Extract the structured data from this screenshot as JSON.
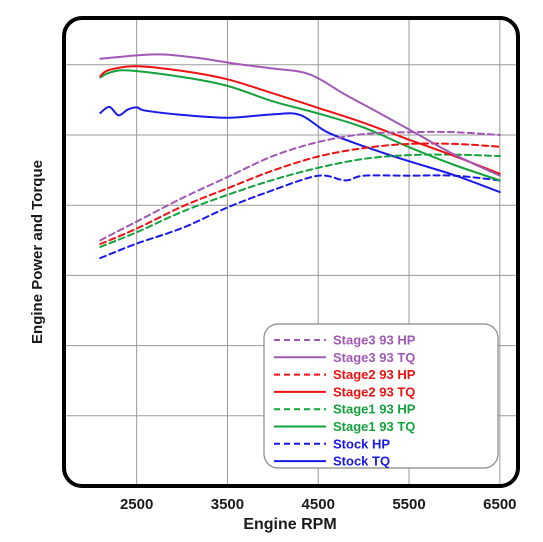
{
  "chart_data": {
    "type": "line",
    "title": "",
    "xlabel": "Engine RPM",
    "ylabel": "Engine Power and Torque",
    "xlim": [
      1700,
      6700
    ],
    "x_ticks": [
      2500,
      3500,
      4500,
      5500,
      6500
    ],
    "ylim": [
      0,
      100
    ],
    "y_grid": [
      15,
      30,
      45,
      60,
      75,
      90
    ],
    "y_tick_labels_shown": false,
    "grid": true,
    "legend_position": "bottom-right",
    "series": [
      {
        "name": "Stage3 93 HP",
        "color": "#a259b5",
        "dash": true,
        "x": [
          2100,
          2500,
          3000,
          3500,
          4000,
          4500,
          5000,
          5500,
          6000,
          6500
        ],
        "y": [
          52.5,
          56.5,
          61.5,
          66,
          70.5,
          73.5,
          75.2,
          75.6,
          75.6,
          75
        ]
      },
      {
        "name": "Stage3 93 TQ",
        "color": "#a259b5",
        "dash": false,
        "x": [
          2100,
          2500,
          2800,
          3200,
          3600,
          4000,
          4400,
          4800,
          5200,
          5600,
          6000,
          6500
        ],
        "y": [
          91.3,
          92,
          92.2,
          91.4,
          90.2,
          89.2,
          88,
          83.6,
          79.4,
          75.1,
          70.8,
          66.3
        ]
      },
      {
        "name": "Stage2 93 HP",
        "color": "#ee1111",
        "dash": true,
        "x": [
          2100,
          2500,
          3000,
          3500,
          4000,
          4500,
          5000,
          5500,
          6000,
          6500
        ],
        "y": [
          51.7,
          55,
          59.7,
          63.6,
          67.4,
          70.4,
          72.2,
          73.1,
          73.1,
          72.5
        ]
      },
      {
        "name": "Stage2 93 TQ",
        "color": "#ee1111",
        "dash": false,
        "x": [
          2100,
          2200,
          2500,
          3000,
          3500,
          4000,
          4500,
          5000,
          5500,
          6000,
          6500
        ],
        "y": [
          87.6,
          88.9,
          89.7,
          88.7,
          86.9,
          83.9,
          80.8,
          77.6,
          74,
          70.5,
          66.7
        ]
      },
      {
        "name": "Stage1 93 HP",
        "color": "#14a23c",
        "dash": true,
        "x": [
          2100,
          2500,
          3000,
          3500,
          4000,
          4500,
          5000,
          5500,
          6000,
          6500
        ],
        "y": [
          51.1,
          54.2,
          58.6,
          62.2,
          65.4,
          68,
          69.9,
          70.7,
          70.8,
          70.5
        ]
      },
      {
        "name": "Stage1 93 TQ",
        "color": "#14a23c",
        "dash": false,
        "x": [
          2100,
          2200,
          2400,
          3000,
          3500,
          4000,
          4500,
          5000,
          5500,
          6000,
          6500
        ],
        "y": [
          87.3,
          88.3,
          88.8,
          87.4,
          85.5,
          82.2,
          79.6,
          76.6,
          72.4,
          68.6,
          65.3
        ]
      },
      {
        "name": "Stock HP",
        "color": "#1a1ae6",
        "dash": true,
        "x": [
          2100,
          2500,
          3000,
          3500,
          4000,
          4500,
          4800,
          5000,
          5500,
          6000,
          6500
        ],
        "y": [
          48.7,
          51.8,
          55.1,
          59.5,
          63.2,
          66.3,
          65.3,
          66.3,
          66.3,
          66.3,
          65.3
        ]
      },
      {
        "name": "Stock TQ",
        "color": "#1a1ae6",
        "dash": false,
        "x": [
          2100,
          2200,
          2300,
          2400,
          2500,
          2600,
          3000,
          3500,
          4000,
          4300,
          4600,
          5000,
          5500,
          6000,
          6500
        ],
        "y": [
          79.7,
          81,
          79.2,
          80.4,
          80.9,
          80.2,
          79.3,
          78.7,
          79.4,
          79.3,
          75.6,
          72.6,
          69.4,
          66.4,
          62.8
        ]
      }
    ]
  }
}
